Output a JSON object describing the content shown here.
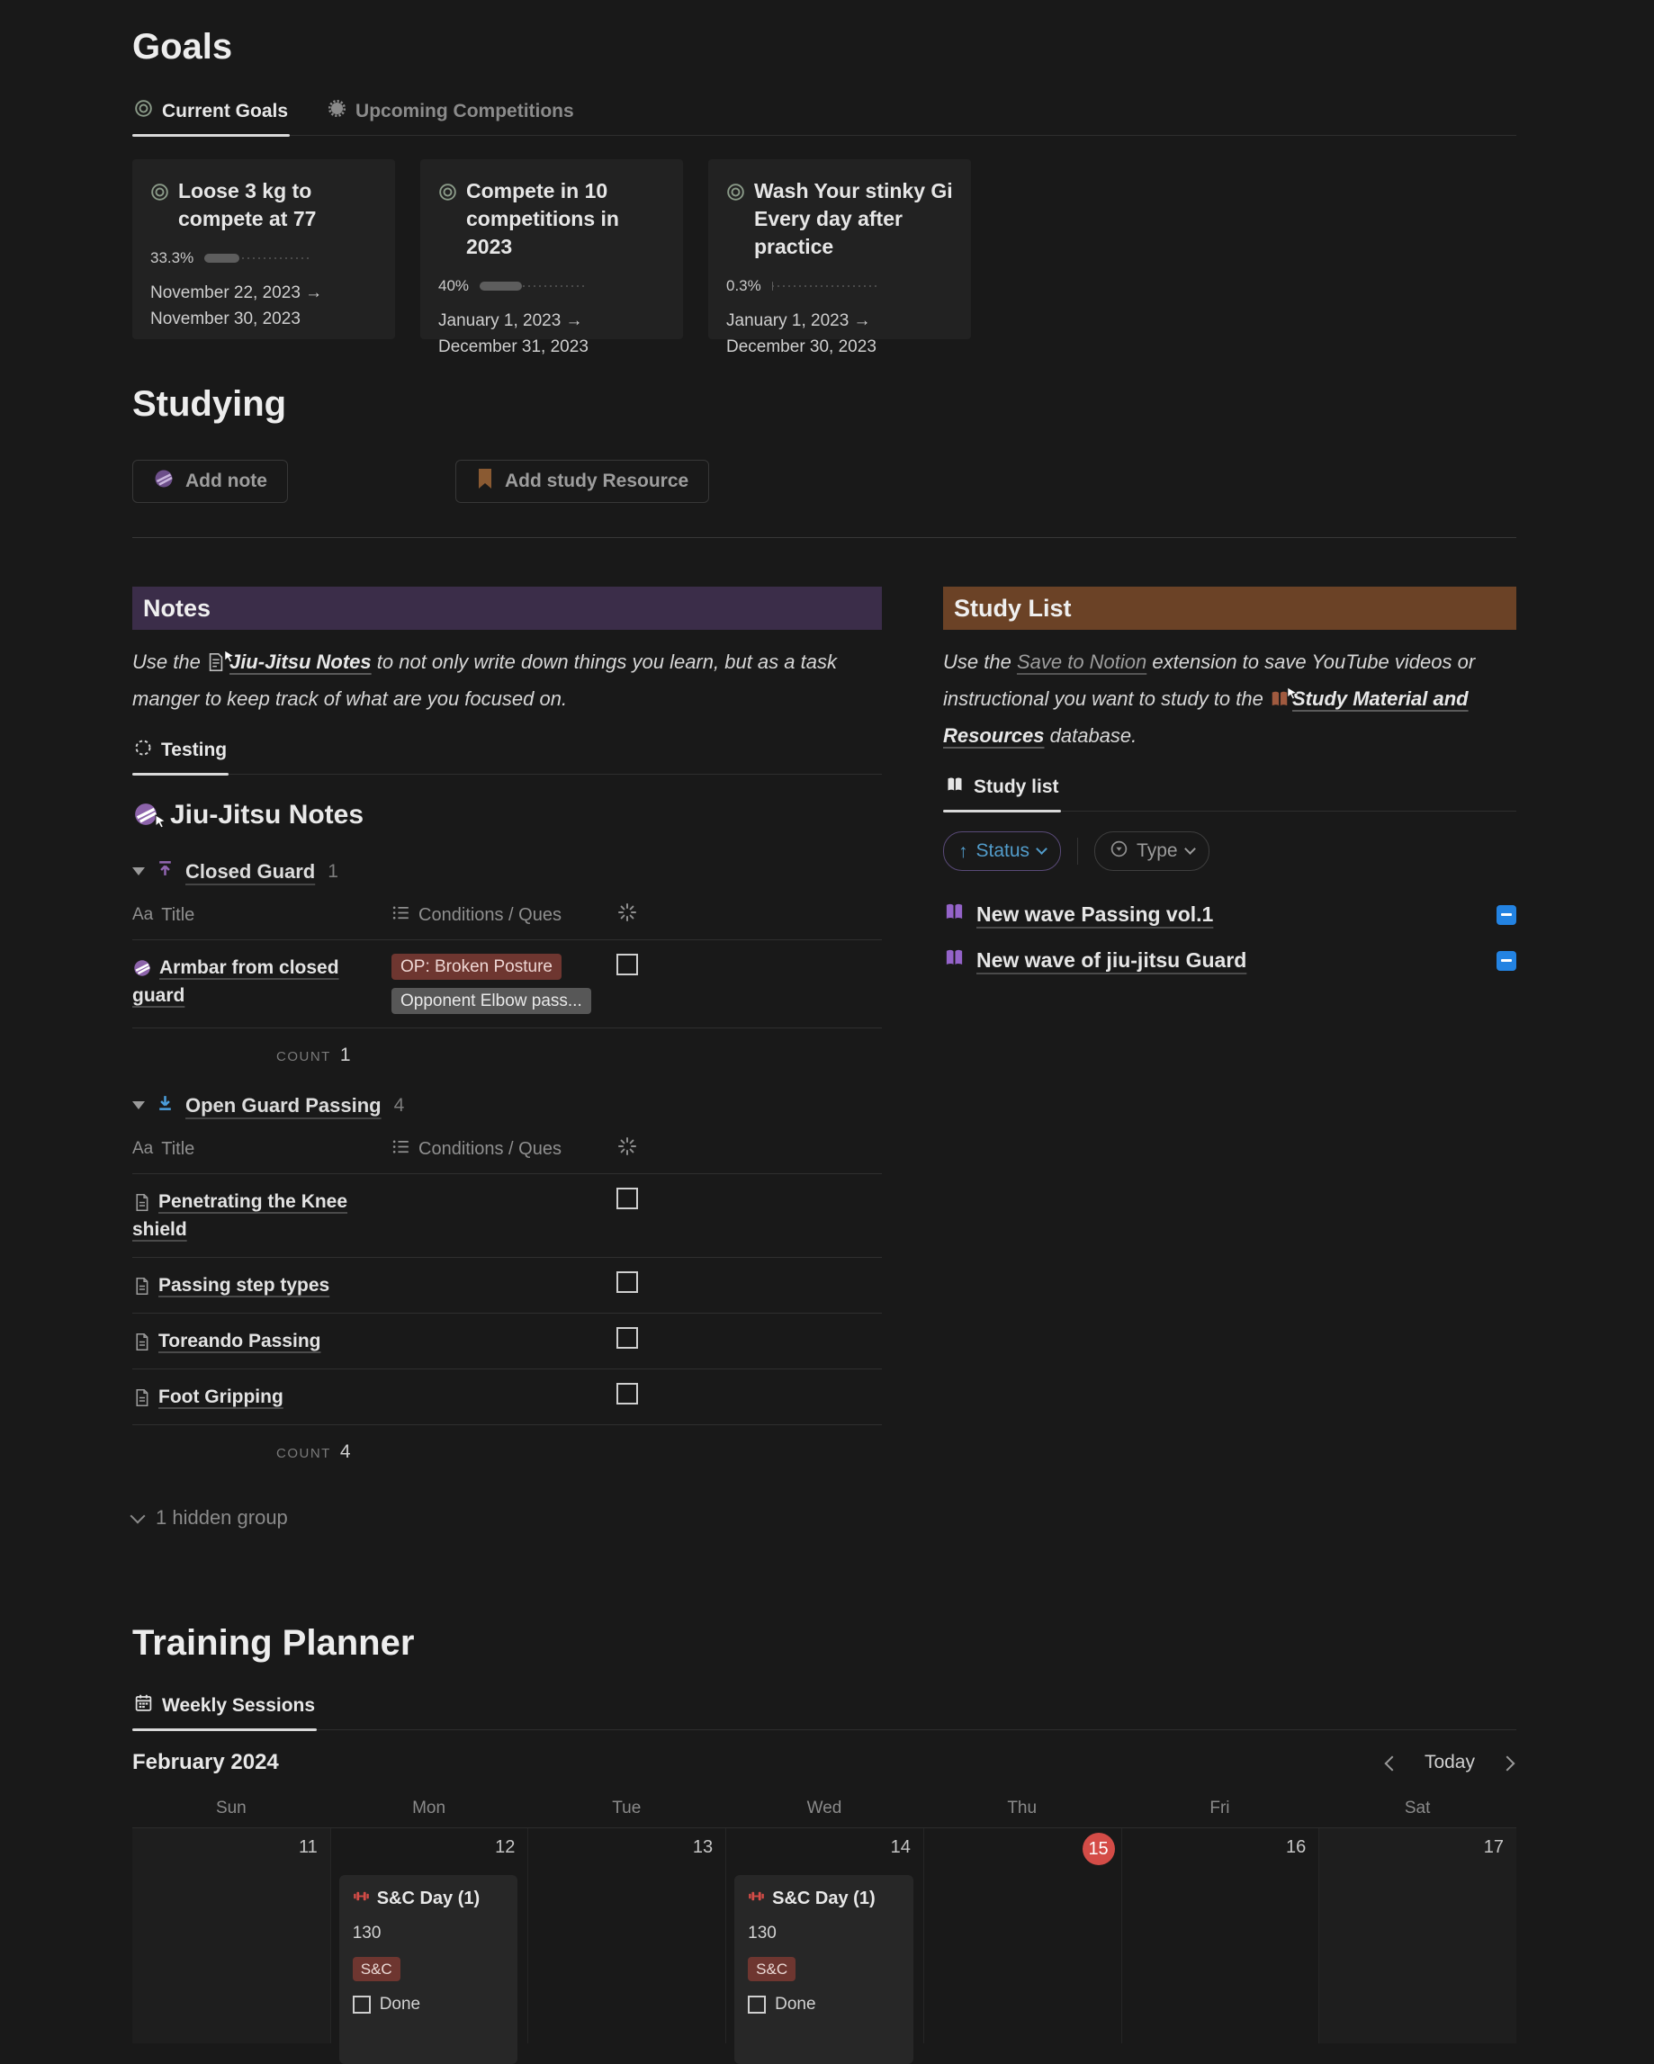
{
  "colors": {
    "page_bg": "#191919",
    "card_bg": "#222222",
    "notes_band": "#3b2d49",
    "study_band": "#6b4226",
    "tag_red_bg": "#6e3630",
    "tag_gray_bg": "#575757",
    "status_blue": "#529cca",
    "minus_blue": "#2383e2",
    "today_red": "#d44c47",
    "belt_purple": "#8d64ab",
    "group_up_purple": "#9065b0",
    "group_down_blue": "#4b9edb"
  },
  "goals": {
    "heading": "Goals",
    "tabs": [
      {
        "label": "Current Goals"
      },
      {
        "label": "Upcoming Competitions"
      }
    ],
    "cards": [
      {
        "title": "Loose 3 kg to compete at 77",
        "percent_label": "33.3%",
        "progress_pct": 33.3,
        "date_range": "November 22, 2023 → November 30, 2023"
      },
      {
        "title": "Compete in 10 competitions in 2023",
        "percent_label": "40%",
        "progress_pct": 40,
        "date_range": "January 1, 2023 → December 31, 2023"
      },
      {
        "title": "Wash Your stinky Gi Every day after practice",
        "percent_label": "0.3%",
        "progress_pct": 0.3,
        "date_range": "January 1, 2023 → December 30, 2023"
      }
    ]
  },
  "studying": {
    "heading": "Studying",
    "add_note": "Add note",
    "add_resource": "Add study Resource"
  },
  "notes": {
    "header": "Notes",
    "intro": {
      "prefix": "Use the",
      "link": "Jiu-Jitsu Notes",
      "suffix": "to not only write down things you learn, but as a task manger to keep track of what are you focused on."
    },
    "tab": "Testing",
    "db_title": "Jiu-Jitsu Notes",
    "table_header": {
      "title_type": "Aa",
      "title": "Title",
      "conditions": "Conditions / Ques"
    },
    "groups": [
      {
        "name": "Closed Guard",
        "count": "1",
        "count_label": "COUNT",
        "count_value": "1",
        "rows": [
          {
            "title": "Armbar from closed guard",
            "tags": [
              {
                "label": "OP: Broken Posture"
              },
              {
                "label": "Opponent Elbow pass..."
              }
            ]
          }
        ]
      },
      {
        "name": "Open Guard Passing",
        "count": "4",
        "count_label": "COUNT",
        "count_value": "4",
        "rows": [
          {
            "title": "Penetrating the Knee shield"
          },
          {
            "title": "Passing step types"
          },
          {
            "title": "Toreando Passing"
          },
          {
            "title": "Foot Gripping"
          }
        ]
      }
    ],
    "hidden_group": "1 hidden group"
  },
  "study": {
    "header": "Study List",
    "intro": {
      "prefix": "Use the",
      "link1": "Save to Notion",
      "middle": "extension to save YouTube videos or instructional you want to study to the",
      "link2": "Study Material and Resources",
      "suffix": "database."
    },
    "tab": "Study list",
    "filters": {
      "status": "Status",
      "type": "Type"
    },
    "items": [
      {
        "title": "New wave Passing vol.1"
      },
      {
        "title": "New wave of jiu-jitsu Guard"
      }
    ]
  },
  "planner": {
    "heading": "Training Planner",
    "tab": "Weekly Sessions",
    "month": "February 2024",
    "today_label": "Today",
    "day_headers": [
      "Sun",
      "Mon",
      "Tue",
      "Wed",
      "Thu",
      "Fri",
      "Sat"
    ],
    "cells": [
      {
        "date": "11"
      },
      {
        "date": "12",
        "event": {
          "title": "S&C Day (1)",
          "duration": "130",
          "tag": "S&C",
          "done_label": "Done",
          "done": false
        }
      },
      {
        "date": "13"
      },
      {
        "date": "14",
        "event": {
          "title": "S&C Day (1)",
          "duration": "130",
          "tag": "S&C",
          "done_label": "Done",
          "done": false
        }
      },
      {
        "date": "15"
      },
      {
        "date": "16"
      },
      {
        "date": "17"
      }
    ]
  }
}
